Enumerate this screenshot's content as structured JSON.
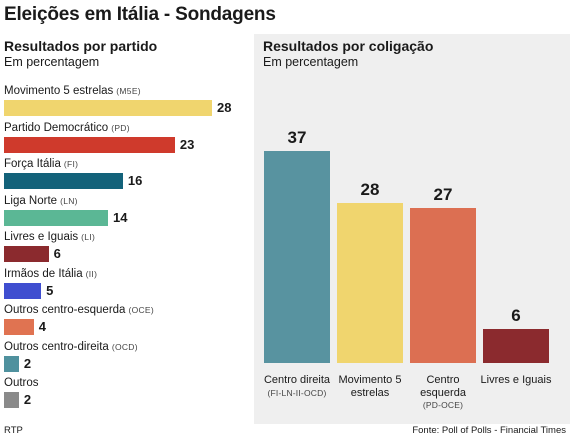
{
  "title": "Eleições em Itália - Sondagens",
  "left_panel": {
    "title": "Resultados por partido",
    "subtitle": "Em percentagem"
  },
  "right_panel": {
    "title": "Resultados por coligação",
    "subtitle": "Em percentagem"
  },
  "footer": {
    "source_left": "RTP",
    "source_right": "Fonte: Poll of Polls - Financial Times"
  },
  "chart_data": [
    {
      "type": "bar",
      "orientation": "horizontal",
      "title": "Resultados por partido",
      "subtitle": "Em percentagem",
      "xlim": [
        0,
        28
      ],
      "grid": false,
      "bars": [
        {
          "label": "Movimento 5 estrelas",
          "abbr": "(M5E)",
          "value": 28,
          "color": "#f0d56e"
        },
        {
          "label": "Partido Democrático",
          "abbr": "(PD)",
          "value": 23,
          "color": "#cf3a2c"
        },
        {
          "label": "Força Itália",
          "abbr": "(FI)",
          "value": 16,
          "color": "#13627a"
        },
        {
          "label": "Liga Norte",
          "abbr": "(LN)",
          "value": 14,
          "color": "#5bb795"
        },
        {
          "label": "Livres e Iguais",
          "abbr": "(LI)",
          "value": 6,
          "color": "#8b2a2e"
        },
        {
          "label": "Irmãos de Itália",
          "abbr": "(II)",
          "value": 5,
          "color": "#3f4ed0"
        },
        {
          "label": "Outros centro-esquerda",
          "abbr": "(OCE)",
          "value": 4,
          "color": "#e07351"
        },
        {
          "label": "Outros centro-direita",
          "abbr": "(OCD)",
          "value": 2,
          "color": "#4f919e"
        },
        {
          "label": "Outros",
          "abbr": "",
          "value": 2,
          "color": "#8a8a8a"
        }
      ]
    },
    {
      "type": "bar",
      "orientation": "vertical",
      "title": "Resultados por coligação",
      "subtitle": "Em percentagem",
      "ylim": [
        0,
        37
      ],
      "grid": false,
      "bars": [
        {
          "label": "Centro direita",
          "sub": "(FI-LN-II-OCD)",
          "value": 37,
          "color": "#5893a0"
        },
        {
          "label": "Movimento 5 estrelas",
          "sub": "",
          "value": 28,
          "color": "#f0d56e"
        },
        {
          "label": "Centro esquerda",
          "sub": "(PD-OCE)",
          "value": 27,
          "color": "#dc6f52"
        },
        {
          "label": "Livres e Iguais",
          "sub": "",
          "value": 6,
          "color": "#8b2a2e"
        }
      ]
    }
  ]
}
